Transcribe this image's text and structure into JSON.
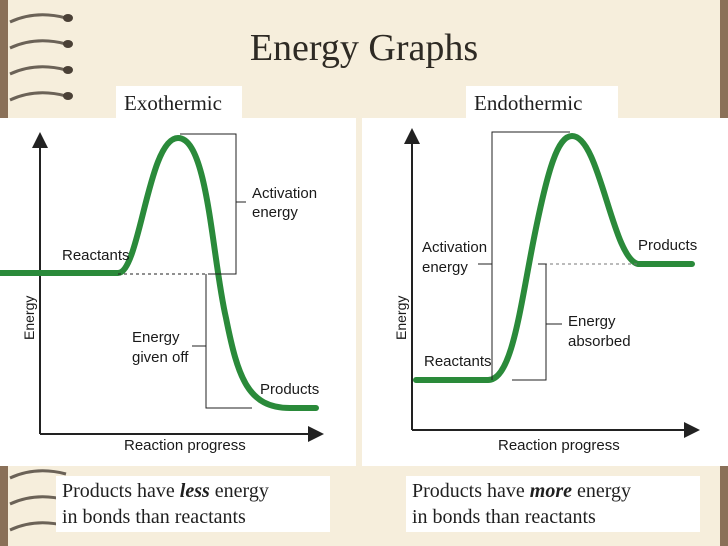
{
  "title": "Energy Graphs",
  "exothermic": {
    "label": "Exothermic",
    "reactants": "Reactants",
    "activation_1": "Activation",
    "activation_2": "energy",
    "given_off_1": "Energy",
    "given_off_2": "given off",
    "products": "Products",
    "x_label": "Reaction progress",
    "y_label": "Energy",
    "caption_prefix": "Products have ",
    "caption_emphasis": "less",
    "caption_suffix": " energy",
    "caption_line2": "in bonds than reactants"
  },
  "endothermic": {
    "label": "Endothermic",
    "activation_1": "Activation",
    "activation_2": "energy",
    "reactants": "Reactants",
    "absorbed_1": "Energy",
    "absorbed_2": "absorbed",
    "products": "Products",
    "x_label": "Reaction progress",
    "y_label": "Energy",
    "caption_prefix": "Products have ",
    "caption_emphasis": "more",
    "caption_suffix": " energy",
    "caption_line2": "in bonds than reactants"
  },
  "colors": {
    "curve": "#2a8a3a",
    "axis": "#222222",
    "background": "#8a7058",
    "paper": "#f6eedc"
  }
}
